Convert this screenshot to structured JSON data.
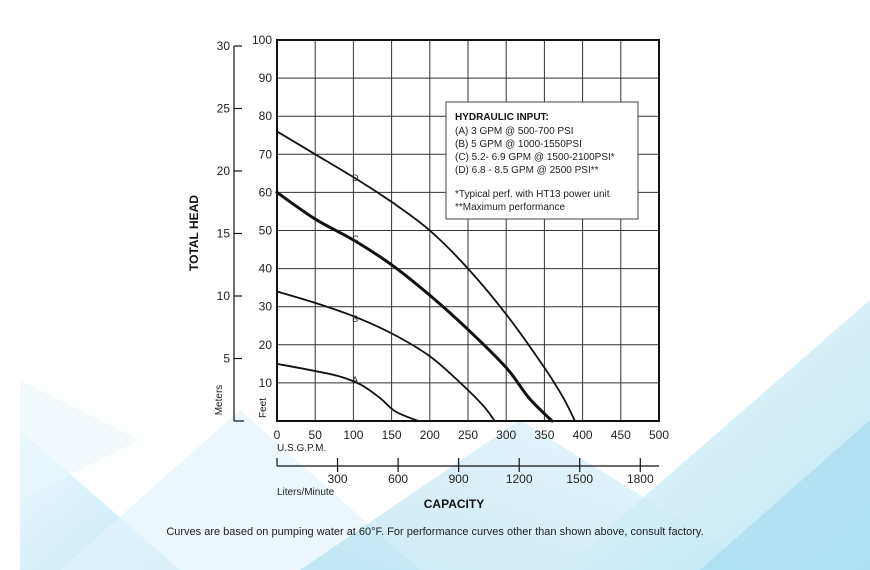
{
  "chart_data": {
    "type": "line",
    "xlabel": "CAPACITY",
    "x_unit_primary": "U.S.G.P.M.",
    "x_unit_secondary": "Liters/Minute",
    "ylabel": "TOTAL HEAD",
    "y_unit_primary": "Feet",
    "y_unit_secondary": "Meters",
    "xlim": [
      0,
      500
    ],
    "ylim": [
      0,
      100
    ],
    "x_ticks": [
      0,
      50,
      100,
      150,
      200,
      250,
      300,
      350,
      400,
      450,
      500
    ],
    "y_ticks": [
      10,
      20,
      30,
      40,
      50,
      60,
      70,
      80,
      90,
      100
    ],
    "lpm_ticks": [
      300,
      600,
      900,
      1200,
      1500,
      1800
    ],
    "meter_ticks": [
      5,
      10,
      15,
      20,
      25,
      30
    ],
    "grid": true,
    "series": [
      {
        "name": "A",
        "label_at": [
          80,
          10
        ],
        "points": [
          [
            0,
            15
          ],
          [
            40,
            13.5
          ],
          [
            80,
            11.8
          ],
          [
            110,
            9.5
          ],
          [
            135,
            6
          ],
          [
            155,
            2.5
          ],
          [
            185,
            0
          ]
        ]
      },
      {
        "name": "B",
        "label_at": [
          80,
          26
        ],
        "points": [
          [
            0,
            34
          ],
          [
            50,
            31
          ],
          [
            100,
            27.5
          ],
          [
            150,
            23
          ],
          [
            200,
            17
          ],
          [
            240,
            10
          ],
          [
            270,
            4
          ],
          [
            285,
            0
          ]
        ]
      },
      {
        "name": "C",
        "label_at": [
          80,
          47
        ],
        "points": [
          [
            0,
            60
          ],
          [
            50,
            53
          ],
          [
            100,
            47.5
          ],
          [
            150,
            41
          ],
          [
            200,
            33
          ],
          [
            250,
            24
          ],
          [
            300,
            14
          ],
          [
            330,
            6
          ],
          [
            360,
            0
          ]
        ]
      },
      {
        "name": "D",
        "label_at": [
          80,
          63
        ],
        "points": [
          [
            0,
            76
          ],
          [
            50,
            70
          ],
          [
            100,
            64
          ],
          [
            150,
            57.5
          ],
          [
            200,
            50
          ],
          [
            250,
            40
          ],
          [
            300,
            28
          ],
          [
            350,
            14
          ],
          [
            375,
            6
          ],
          [
            390,
            0
          ]
        ]
      }
    ],
    "legend": {
      "position": "top-right",
      "title": "HYDRAULIC INPUT:",
      "items": [
        "(A) 3 GPM @ 500-700 PSI",
        "(B) 5 GPM @ 1000-1550PSI",
        "(C) 5.2- 6.9 GPM @ 1500-2100PSI*",
        "(D) 6.8 - 8.5 GPM @ 2500 PSI**"
      ],
      "notes": [
        "*Typical perf. with HT13 power unit",
        "**Maximum performance"
      ]
    }
  },
  "footnote": "Curves are based on pumping water at 60°F. For performance curves other than shown above, consult factory."
}
